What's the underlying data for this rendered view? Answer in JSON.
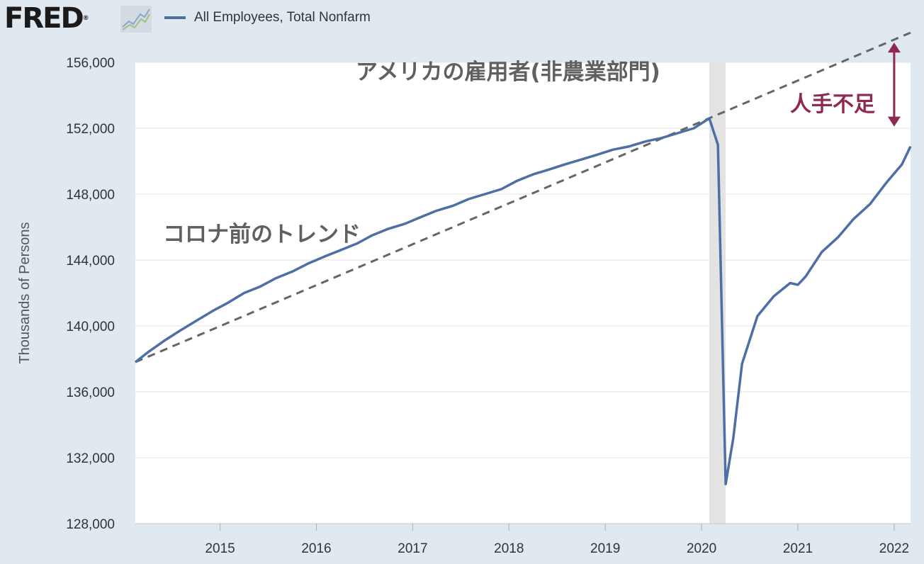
{
  "header": {
    "logo_text": "FRED",
    "logo_mark": "®",
    "logo_icon": "line-chart-icon",
    "legend_label": "All Employees, Total Nonfarm",
    "legend_color": "#4e6fa5"
  },
  "chart_data": {
    "type": "line",
    "ylabel": "Thousands of Persons",
    "xlabel": "",
    "ylim": [
      128000,
      156000
    ],
    "xlim": [
      2014.12,
      2022.17
    ],
    "yticks": [
      "128,000",
      "132,000",
      "136,000",
      "140,000",
      "144,000",
      "148,000",
      "152,000",
      "156,000"
    ],
    "ytick_values": [
      128000,
      132000,
      136000,
      140000,
      144000,
      148000,
      152000,
      156000
    ],
    "xticks": [
      "2015",
      "2016",
      "2017",
      "2018",
      "2019",
      "2020",
      "2021",
      "2022"
    ],
    "xtick_values": [
      2015,
      2016,
      2017,
      2018,
      2019,
      2020,
      2021,
      2022
    ],
    "grid": "horizontal",
    "legend_position": "top-left",
    "recession_shading": [
      2020.08,
      2020.25
    ],
    "series": [
      {
        "name": "All Employees, Total Nonfarm",
        "color": "#4e6fa5",
        "x": [
          2014.12,
          2014.25,
          2014.42,
          2014.58,
          2014.75,
          2014.92,
          2015.08,
          2015.25,
          2015.42,
          2015.58,
          2015.75,
          2015.92,
          2016.08,
          2016.25,
          2016.42,
          2016.58,
          2016.75,
          2016.92,
          2017.08,
          2017.25,
          2017.42,
          2017.58,
          2017.75,
          2017.92,
          2018.08,
          2018.25,
          2018.42,
          2018.58,
          2018.75,
          2018.92,
          2019.08,
          2019.25,
          2019.42,
          2019.58,
          2019.75,
          2019.92,
          2020.08,
          2020.17,
          2020.25,
          2020.33,
          2020.42,
          2020.58,
          2020.75,
          2020.92,
          2021.0,
          2021.08,
          2021.25,
          2021.42,
          2021.58,
          2021.75,
          2021.92,
          2022.08,
          2022.17
        ],
        "y": [
          137800,
          138400,
          139100,
          139700,
          140300,
          140900,
          141400,
          142000,
          142400,
          142900,
          143300,
          143800,
          144200,
          144600,
          145000,
          145500,
          145900,
          146200,
          146600,
          147000,
          147300,
          147700,
          148000,
          148300,
          148800,
          149200,
          149500,
          149800,
          150100,
          150400,
          150700,
          150900,
          151200,
          151400,
          151700,
          152000,
          152600,
          151000,
          130400,
          133200,
          137700,
          140600,
          141800,
          142600,
          142500,
          143000,
          144500,
          145400,
          146500,
          147400,
          148700,
          149800,
          150900
        ]
      },
      {
        "name": "コロナ前のトレンド",
        "color": "#666666",
        "dashed": true,
        "x": [
          2014.12,
          2022.17
        ],
        "y": [
          137800,
          157800
        ]
      }
    ],
    "annotations": [
      {
        "text": "アメリカの雇用者(非農業部門)",
        "color": "#606060"
      },
      {
        "text": "コロナ前のトレンド",
        "color": "#606060"
      },
      {
        "text": "人手不足",
        "color": "#8e2a52"
      }
    ],
    "shortage_arrow": {
      "x": 2022.0,
      "from": 157200,
      "to": 152100,
      "color": "#8e2a52"
    }
  }
}
